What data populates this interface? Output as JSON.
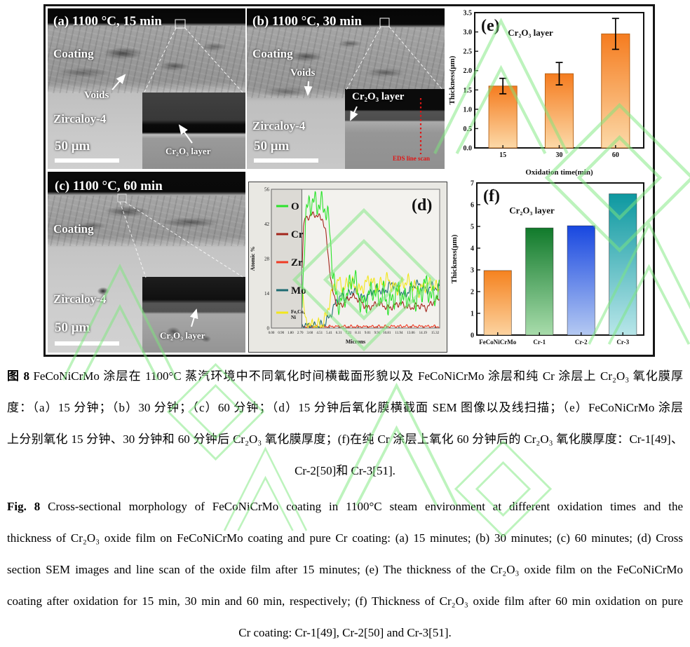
{
  "figure": {
    "panels": {
      "a": {
        "title": "(a) 1100 °C, 15 min",
        "coating": "Coating",
        "voids": "Voids",
        "substrate": "Zircaloy-4",
        "scalebar": "50 μm",
        "inset_label": "Cr₂O₃ layer"
      },
      "b": {
        "title": "(b) 1100 °C, 30 min",
        "coating": "Coating",
        "voids": "Voids",
        "substrate": "Zircaloy-4",
        "scalebar": "50 μm",
        "inset_label": "Cr₂O₃ layer",
        "eds_label": "EDS line scan"
      },
      "c": {
        "title": "(c) 1100 °C, 60 min",
        "coating": "Coating",
        "substrate": "Zircaloy-4",
        "scalebar": "50 μm",
        "inset_label": "Cr₂O₃ layer"
      }
    }
  },
  "chart_data": [
    {
      "id": "e",
      "type": "bar",
      "panel_label": "(e)",
      "title": "Cr₂O₃ layer",
      "categories": [
        "15",
        "30",
        "60"
      ],
      "values": [
        1.6,
        1.92,
        2.95
      ],
      "errors": [
        0.2,
        0.29,
        0.4
      ],
      "xlabel": "Oxidation time(min)",
      "ylabel": "Thickness(μm)",
      "ylim": [
        0,
        3.5
      ],
      "ytick_step": 0.5,
      "grid": false,
      "legend_position": "none",
      "bar_colors": [
        [
          "#f57c1f",
          "#fcd9a8"
        ],
        [
          "#f57c1f",
          "#fcd9a8"
        ],
        [
          "#f57c1f",
          "#fcd9a8"
        ]
      ]
    },
    {
      "id": "d",
      "type": "line",
      "panel_label": "(d)",
      "xlabel": "Microns",
      "ylabel": "Atomic %",
      "xlim": [
        0,
        15.75
      ],
      "ylim": [
        0,
        56
      ],
      "yticks": [
        0,
        14,
        28,
        42,
        56
      ],
      "xticks": [
        "0.00",
        "0.90",
        "1.80",
        "2.70",
        "3.60",
        "4.51",
        "5.41",
        "6.31",
        "7.21",
        "8.11",
        "9.01",
        "9.91",
        "10.81",
        "11.94",
        "13.06",
        "14.19",
        "15.32"
      ],
      "legend_box_end": 2.85,
      "legend_position": "left",
      "grid": false,
      "series": [
        {
          "name": "O",
          "color": "#2ce32c",
          "noise": 5.5,
          "points": [
            [
              2.85,
              4
            ],
            [
              3.0,
              24
            ],
            [
              3.2,
              45
            ],
            [
              3.5,
              50
            ],
            [
              3.9,
              51
            ],
            [
              4.3,
              50
            ],
            [
              4.7,
              50
            ],
            [
              5.1,
              48
            ],
            [
              5.4,
              42
            ],
            [
              5.7,
              26
            ],
            [
              6.0,
              13
            ],
            [
              6.4,
              10
            ],
            [
              6.9,
              13
            ],
            [
              7.3,
              16
            ],
            [
              7.7,
              22
            ],
            [
              8.1,
              14
            ],
            [
              8.5,
              9
            ],
            [
              9.0,
              12
            ],
            [
              9.5,
              16
            ],
            [
              10.0,
              12
            ],
            [
              10.5,
              14
            ],
            [
              11.0,
              9
            ],
            [
              11.5,
              13
            ],
            [
              12.0,
              15
            ],
            [
              12.5,
              11
            ],
            [
              13.0,
              14
            ],
            [
              13.5,
              11
            ],
            [
              14.0,
              15
            ],
            [
              14.5,
              18
            ],
            [
              15.0,
              12
            ],
            [
              15.6,
              14
            ]
          ]
        },
        {
          "name": "Cr",
          "color": "#a3261c",
          "noise": 1.4,
          "points": [
            [
              2.85,
              22
            ],
            [
              3.0,
              40
            ],
            [
              3.15,
              44
            ],
            [
              3.5,
              45
            ],
            [
              4.0,
              46
            ],
            [
              4.4,
              45
            ],
            [
              4.8,
              44
            ],
            [
              5.1,
              38
            ],
            [
              5.4,
              26
            ],
            [
              5.7,
              15
            ],
            [
              6.1,
              10
            ],
            [
              6.5,
              9
            ],
            [
              7.0,
              11
            ],
            [
              7.5,
              13
            ],
            [
              8.0,
              12
            ],
            [
              8.5,
              10
            ],
            [
              9.0,
              8
            ],
            [
              9.5,
              9
            ],
            [
              10.0,
              10
            ],
            [
              10.5,
              9
            ],
            [
              11.0,
              8
            ],
            [
              11.5,
              9
            ],
            [
              12.0,
              10
            ],
            [
              12.5,
              9
            ],
            [
              13.0,
              8
            ],
            [
              13.5,
              9
            ],
            [
              14.0,
              9
            ],
            [
              14.5,
              8
            ],
            [
              15.0,
              10
            ],
            [
              15.6,
              12
            ]
          ]
        },
        {
          "name": "Zr",
          "color": "#ef3b24",
          "noise": 0.7,
          "points": [
            [
              2.85,
              0.5
            ],
            [
              6.0,
              0.6
            ],
            [
              9.0,
              0.5
            ],
            [
              12.0,
              0.7
            ],
            [
              15.6,
              0.6
            ]
          ]
        },
        {
          "name": "Mo",
          "color": "#1e6b72",
          "noise": 2,
          "points": [
            [
              2.85,
              1
            ],
            [
              3.5,
              0.6
            ],
            [
              4.5,
              0.8
            ],
            [
              5.0,
              2
            ],
            [
              5.5,
              5
            ],
            [
              6.0,
              10
            ],
            [
              6.5,
              13
            ],
            [
              7.0,
              12
            ],
            [
              7.5,
              15
            ],
            [
              8.0,
              14
            ],
            [
              8.5,
              12
            ],
            [
              9.0,
              13
            ],
            [
              9.5,
              15
            ],
            [
              10.0,
              16
            ],
            [
              10.5,
              14
            ],
            [
              11.0,
              17
            ],
            [
              11.5,
              18
            ],
            [
              12.0,
              15
            ],
            [
              12.5,
              13
            ],
            [
              13.0,
              16
            ],
            [
              13.5,
              18
            ],
            [
              14.0,
              17
            ],
            [
              14.5,
              15
            ],
            [
              15.0,
              17
            ],
            [
              15.6,
              16
            ]
          ]
        },
        {
          "name": "Fe,Co,",
          "name2": "Ni",
          "color": "#f2e71d",
          "noise": 3,
          "points": [
            [
              2.85,
              20
            ],
            [
              3.0,
              9
            ],
            [
              3.2,
              3
            ],
            [
              3.6,
              1
            ],
            [
              4.4,
              1
            ],
            [
              4.9,
              2
            ],
            [
              5.2,
              6
            ],
            [
              5.5,
              12
            ],
            [
              5.9,
              17
            ],
            [
              6.3,
              19
            ],
            [
              6.8,
              16
            ],
            [
              7.3,
              19
            ],
            [
              7.8,
              17
            ],
            [
              8.3,
              15
            ],
            [
              8.8,
              18
            ],
            [
              9.3,
              20
            ],
            [
              9.8,
              16
            ],
            [
              10.3,
              18
            ],
            [
              10.8,
              20
            ],
            [
              11.3,
              17
            ],
            [
              11.8,
              16
            ],
            [
              12.3,
              18
            ],
            [
              12.8,
              19
            ],
            [
              13.3,
              17
            ],
            [
              13.8,
              15
            ],
            [
              14.3,
              17
            ],
            [
              14.8,
              18
            ],
            [
              15.6,
              16
            ]
          ]
        }
      ]
    },
    {
      "id": "f",
      "type": "bar",
      "panel_label": "(f)",
      "title": "Cr₂O₃ layer",
      "categories": [
        "FeCoNiCrMo",
        "Cr-1",
        "Cr-2",
        "Cr-3"
      ],
      "values": [
        2.97,
        4.93,
        5.03,
        6.5
      ],
      "xlabel": "",
      "ylabel": "Thickness(μm)",
      "ylim": [
        0,
        7
      ],
      "ytick_step": 1,
      "grid": false,
      "legend_position": "none",
      "bar_colors": [
        [
          "#f5821f",
          "#fcd3a0"
        ],
        [
          "#117a2b",
          "#a8dcab"
        ],
        [
          "#1847e0",
          "#b4c9f2"
        ],
        [
          "#0d98a0",
          "#b8e6e9"
        ]
      ]
    }
  ],
  "captions": {
    "zh_label": "图 8",
    "zh_lines": [
      "FeCoNiCrMo 涂层在 1100°C 蒸汽环境中不同氧化时间横截面形貌以及 FeCoNiCrMo 涂层和纯 Cr 涂层上 Cr₂O₃ 氧化膜厚",
      "度：（a）15 分钟；（b）30 分钟；（c）60 分钟；（d）15 分钟后氧化膜横截面 SEM 图像以及线扫描；（e）FeCoNiCrMo 涂层",
      "上分别氧化 15 分钟、30 分钟和 60 分钟后 Cr₂O₃ 氧化膜厚度；(f)在纯 Cr 涂层上氧化 60 分钟后的 Cr₂O₃ 氧化膜厚度：Cr-1[49]、",
      "Cr-2[50]和 Cr-3[51]."
    ],
    "en_label": "Fig. 8",
    "en_lines": [
      "Cross-sectional morphology of FeCoNiCrMo coating in 1100°C steam environment at different oxidation times and the",
      "thickness of Cr₂O₃ oxide film on FeCoNiCrMo coating and pure Cr coating: (a) 15 minutes; (b) 30 minutes; (c) 60 minutes; (d) Cross",
      "section SEM images and line scan of the oxide film after 15 minutes; (e) The thickness of the Cr₂O₃ oxide film on the FeCoNiCrMo",
      "coating after oxidation for 15 min, 30 min and 60 min, respectively; (f) Thickness of Cr₂O₃ oxide film after 60 min oxidation on pure",
      "Cr coating: Cr-1[49], Cr-2[50] and Cr-3[51]."
    ]
  },
  "colors": {
    "watermark": "#7de87d",
    "eds_line": "#e01515",
    "bar_orange": "#f57c1f",
    "bar_green": "#117a2b",
    "bar_blue": "#1847e0",
    "bar_teal": "#0d98a0"
  }
}
